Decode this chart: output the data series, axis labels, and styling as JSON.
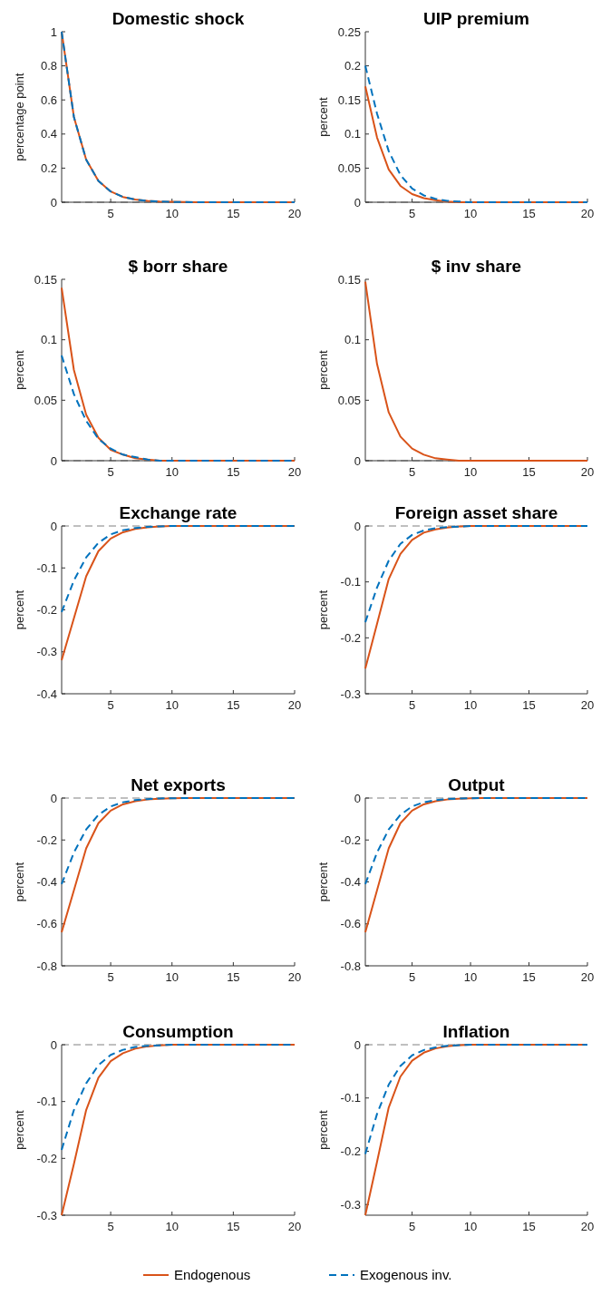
{
  "chart_data": [
    {
      "type": "line",
      "title": "Domestic shock",
      "ylabel": "percentage point",
      "x": [
        1,
        2,
        3,
        4,
        5,
        6,
        7,
        8,
        9,
        10,
        11,
        12,
        13,
        14,
        15,
        16,
        17,
        18,
        19,
        20
      ],
      "xlim": [
        1,
        20
      ],
      "xticks": [
        5,
        10,
        15,
        20
      ],
      "ylim": [
        0,
        1
      ],
      "yticks": [
        0,
        0.2,
        0.4,
        0.6,
        0.8,
        1
      ],
      "ref_lines": [
        {
          "axis": "y",
          "value": 0,
          "color": "#808080",
          "line_style": "dashed"
        }
      ],
      "series": [
        {
          "color": "#d95319",
          "line_style": "solid",
          "values": [
            1,
            0.5,
            0.25,
            0.125,
            0.063,
            0.031,
            0.016,
            0.008,
            0.004,
            0.002,
            0.001,
            0,
            0,
            0,
            0,
            0,
            0,
            0,
            0,
            0
          ]
        },
        {
          "color": "#0072bd",
          "line_style": "dashed",
          "values": [
            1,
            0.5,
            0.25,
            0.125,
            0.063,
            0.031,
            0.016,
            0.008,
            0.004,
            0.002,
            0.001,
            0,
            0,
            0,
            0,
            0,
            0,
            0,
            0,
            0
          ]
        }
      ]
    },
    {
      "type": "line",
      "title": "UIP premium",
      "ylabel": "percent",
      "x": [
        1,
        2,
        3,
        4,
        5,
        6,
        7,
        8,
        9,
        10,
        11,
        12,
        13,
        14,
        15,
        16,
        17,
        18,
        19,
        20
      ],
      "xlim": [
        1,
        20
      ],
      "xticks": [
        5,
        10,
        15,
        20
      ],
      "ylim": [
        0,
        0.25
      ],
      "yticks": [
        0,
        0.05,
        0.1,
        0.15,
        0.2,
        0.25
      ],
      "ref_lines": [
        {
          "axis": "y",
          "value": 0,
          "color": "#808080",
          "line_style": "dashed"
        }
      ],
      "series": [
        {
          "color": "#d95319",
          "line_style": "solid",
          "values": [
            0.17,
            0.095,
            0.048,
            0.024,
            0.012,
            0.006,
            0.003,
            0.001,
            0,
            0,
            0,
            0,
            0,
            0,
            0,
            0,
            0,
            0,
            0,
            0
          ]
        },
        {
          "color": "#0072bd",
          "line_style": "dashed",
          "values": [
            0.2,
            0.13,
            0.075,
            0.04,
            0.02,
            0.01,
            0.005,
            0.002,
            0.001,
            0,
            0,
            0,
            0,
            0,
            0,
            0,
            0,
            0,
            0,
            0
          ]
        }
      ]
    },
    {
      "type": "line",
      "title": "$ borr share",
      "ylabel": "percent",
      "x": [
        1,
        2,
        3,
        4,
        5,
        6,
        7,
        8,
        9,
        10,
        11,
        12,
        13,
        14,
        15,
        16,
        17,
        18,
        19,
        20
      ],
      "xlim": [
        1,
        20
      ],
      "xticks": [
        5,
        10,
        15,
        20
      ],
      "ylim": [
        0,
        0.15
      ],
      "yticks": [
        0,
        0.05,
        0.1,
        0.15
      ],
      "ref_lines": [
        {
          "axis": "y",
          "value": 0,
          "color": "#808080",
          "line_style": "dashed"
        }
      ],
      "series": [
        {
          "color": "#d95319",
          "line_style": "solid",
          "values": [
            0.143,
            0.075,
            0.038,
            0.019,
            0.009,
            0.005,
            0.002,
            0.001,
            0,
            0,
            0,
            0,
            0,
            0,
            0,
            0,
            0,
            0,
            0,
            0
          ]
        },
        {
          "color": "#0072bd",
          "line_style": "dashed",
          "values": [
            0.087,
            0.055,
            0.033,
            0.018,
            0.01,
            0.005,
            0.003,
            0.001,
            0,
            0,
            0,
            0,
            0,
            0,
            0,
            0,
            0,
            0,
            0,
            0
          ]
        }
      ]
    },
    {
      "type": "line",
      "title": "$ inv share",
      "ylabel": "percent",
      "x": [
        1,
        2,
        3,
        4,
        5,
        6,
        7,
        8,
        9,
        10,
        11,
        12,
        13,
        14,
        15,
        16,
        17,
        18,
        19,
        20
      ],
      "xlim": [
        1,
        20
      ],
      "xticks": [
        5,
        10,
        15,
        20
      ],
      "ylim": [
        0,
        0.15
      ],
      "yticks": [
        0,
        0.05,
        0.1,
        0.15
      ],
      "ref_lines": [
        {
          "axis": "y",
          "value": 0,
          "color": "#808080",
          "line_style": "dashed"
        }
      ],
      "series": [
        {
          "color": "#d95319",
          "line_style": "solid",
          "values": [
            0.148,
            0.08,
            0.04,
            0.02,
            0.01,
            0.005,
            0.002,
            0.001,
            0,
            0,
            0,
            0,
            0,
            0,
            0,
            0,
            0,
            0,
            0,
            0
          ]
        }
      ]
    },
    {
      "type": "line",
      "title": "Exchange rate",
      "ylabel": "percent",
      "x": [
        1,
        2,
        3,
        4,
        5,
        6,
        7,
        8,
        9,
        10,
        11,
        12,
        13,
        14,
        15,
        16,
        17,
        18,
        19,
        20
      ],
      "xlim": [
        1,
        20
      ],
      "xticks": [
        5,
        10,
        15,
        20
      ],
      "ylim": [
        -0.4,
        0
      ],
      "yticks": [
        -0.4,
        -0.3,
        -0.2,
        -0.1,
        0
      ],
      "ref_lines": [
        {
          "axis": "y",
          "value": 0,
          "color": "#808080",
          "line_style": "dashed"
        }
      ],
      "series": [
        {
          "color": "#d95319",
          "line_style": "solid",
          "values": [
            -0.32,
            -0.22,
            -0.12,
            -0.06,
            -0.03,
            -0.015,
            -0.007,
            -0.003,
            -0.001,
            0,
            0,
            0,
            0,
            0,
            0,
            0,
            0,
            0,
            0,
            0
          ]
        },
        {
          "color": "#0072bd",
          "line_style": "dashed",
          "values": [
            -0.205,
            -0.13,
            -0.075,
            -0.04,
            -0.02,
            -0.01,
            -0.005,
            -0.002,
            -0.001,
            0,
            0,
            0,
            0,
            0,
            0,
            0,
            0,
            0,
            0,
            0
          ]
        }
      ]
    },
    {
      "type": "line",
      "title": "Foreign asset share",
      "ylabel": "percent",
      "x": [
        1,
        2,
        3,
        4,
        5,
        6,
        7,
        8,
        9,
        10,
        11,
        12,
        13,
        14,
        15,
        16,
        17,
        18,
        19,
        20
      ],
      "xlim": [
        1,
        20
      ],
      "xticks": [
        5,
        10,
        15,
        20
      ],
      "ylim": [
        -0.3,
        0
      ],
      "yticks": [
        -0.3,
        -0.2,
        -0.1,
        0
      ],
      "ref_lines": [
        {
          "axis": "y",
          "value": 0,
          "color": "#808080",
          "line_style": "dashed"
        }
      ],
      "series": [
        {
          "color": "#d95319",
          "line_style": "solid",
          "values": [
            -0.255,
            -0.175,
            -0.095,
            -0.05,
            -0.025,
            -0.012,
            -0.006,
            -0.003,
            -0.001,
            0,
            0,
            0,
            0,
            0,
            0,
            0,
            0,
            0,
            0,
            0
          ]
        },
        {
          "color": "#0072bd",
          "line_style": "dashed",
          "values": [
            -0.172,
            -0.11,
            -0.062,
            -0.032,
            -0.016,
            -0.008,
            -0.004,
            -0.002,
            -0.001,
            0,
            0,
            0,
            0,
            0,
            0,
            0,
            0,
            0,
            0,
            0
          ]
        }
      ]
    },
    {
      "type": "line",
      "title": "Net exports",
      "ylabel": "percent",
      "x": [
        1,
        2,
        3,
        4,
        5,
        6,
        7,
        8,
        9,
        10,
        11,
        12,
        13,
        14,
        15,
        16,
        17,
        18,
        19,
        20
      ],
      "xlim": [
        1,
        20
      ],
      "xticks": [
        5,
        10,
        15,
        20
      ],
      "ylim": [
        -0.8,
        0
      ],
      "yticks": [
        -0.8,
        -0.6,
        -0.4,
        -0.2,
        0
      ],
      "ref_lines": [
        {
          "axis": "y",
          "value": 0,
          "color": "#808080",
          "line_style": "dashed"
        }
      ],
      "series": [
        {
          "color": "#d95319",
          "line_style": "solid",
          "values": [
            -0.64,
            -0.44,
            -0.24,
            -0.12,
            -0.06,
            -0.03,
            -0.015,
            -0.007,
            -0.003,
            -0.001,
            0,
            0,
            0,
            0,
            0,
            0,
            0,
            0,
            0,
            0
          ]
        },
        {
          "color": "#0072bd",
          "line_style": "dashed",
          "values": [
            -0.41,
            -0.26,
            -0.15,
            -0.08,
            -0.04,
            -0.02,
            -0.01,
            -0.005,
            -0.002,
            -0.001,
            0,
            0,
            0,
            0,
            0,
            0,
            0,
            0,
            0,
            0
          ]
        }
      ]
    },
    {
      "type": "line",
      "title": "Output",
      "ylabel": "percent",
      "x": [
        1,
        2,
        3,
        4,
        5,
        6,
        7,
        8,
        9,
        10,
        11,
        12,
        13,
        14,
        15,
        16,
        17,
        18,
        19,
        20
      ],
      "xlim": [
        1,
        20
      ],
      "xticks": [
        5,
        10,
        15,
        20
      ],
      "ylim": [
        -0.8,
        0
      ],
      "yticks": [
        -0.8,
        -0.6,
        -0.4,
        -0.2,
        0
      ],
      "ref_lines": [
        {
          "axis": "y",
          "value": 0,
          "color": "#808080",
          "line_style": "dashed"
        }
      ],
      "series": [
        {
          "color": "#d95319",
          "line_style": "solid",
          "values": [
            -0.64,
            -0.44,
            -0.24,
            -0.12,
            -0.06,
            -0.03,
            -0.015,
            -0.007,
            -0.003,
            -0.001,
            0,
            0,
            0,
            0,
            0,
            0,
            0,
            0,
            0,
            0
          ]
        },
        {
          "color": "#0072bd",
          "line_style": "dashed",
          "values": [
            -0.41,
            -0.26,
            -0.15,
            -0.08,
            -0.04,
            -0.02,
            -0.01,
            -0.005,
            -0.002,
            -0.001,
            0,
            0,
            0,
            0,
            0,
            0,
            0,
            0,
            0,
            0
          ]
        }
      ]
    },
    {
      "type": "line",
      "title": "Consumption",
      "ylabel": "percent",
      "x": [
        1,
        2,
        3,
        4,
        5,
        6,
        7,
        8,
        9,
        10,
        11,
        12,
        13,
        14,
        15,
        16,
        17,
        18,
        19,
        20
      ],
      "xlim": [
        1,
        20
      ],
      "xticks": [
        5,
        10,
        15,
        20
      ],
      "ylim": [
        -0.3,
        0
      ],
      "yticks": [
        -0.3,
        -0.2,
        -0.1,
        0
      ],
      "ref_lines": [
        {
          "axis": "y",
          "value": 0,
          "color": "#808080",
          "line_style": "dashed"
        }
      ],
      "series": [
        {
          "color": "#d95319",
          "line_style": "solid",
          "values": [
            -0.3,
            -0.21,
            -0.115,
            -0.058,
            -0.029,
            -0.015,
            -0.007,
            -0.003,
            -0.001,
            0,
            0,
            0,
            0,
            0,
            0,
            0,
            0,
            0,
            0,
            0
          ]
        },
        {
          "color": "#0072bd",
          "line_style": "dashed",
          "values": [
            -0.185,
            -0.115,
            -0.068,
            -0.036,
            -0.018,
            -0.009,
            -0.004,
            -0.002,
            -0.001,
            0,
            0,
            0,
            0,
            0,
            0,
            0,
            0,
            0,
            0,
            0
          ]
        }
      ]
    },
    {
      "type": "line",
      "title": "Inflation",
      "ylabel": "percent",
      "x": [
        1,
        2,
        3,
        4,
        5,
        6,
        7,
        8,
        9,
        10,
        11,
        12,
        13,
        14,
        15,
        16,
        17,
        18,
        19,
        20
      ],
      "xlim": [
        1,
        20
      ],
      "xticks": [
        5,
        10,
        15,
        20
      ],
      "ylim": [
        -0.32,
        0
      ],
      "yticks": [
        -0.3,
        -0.2,
        -0.1,
        0
      ],
      "legend": "bottom",
      "ref_lines": [
        {
          "axis": "y",
          "value": 0,
          "color": "#808080",
          "line_style": "dashed"
        }
      ],
      "series": [
        {
          "name": "Endogenous",
          "color": "#d95319",
          "line_style": "solid",
          "values": [
            -0.32,
            -0.22,
            -0.118,
            -0.06,
            -0.03,
            -0.015,
            -0.007,
            -0.003,
            -0.001,
            0,
            0,
            0,
            0,
            0,
            0,
            0,
            0,
            0,
            0,
            0
          ]
        },
        {
          "name": "Exogenous inv.",
          "color": "#0072bd",
          "line_style": "dashed",
          "values": [
            -0.205,
            -0.13,
            -0.075,
            -0.04,
            -0.02,
            -0.01,
            -0.005,
            -0.002,
            -0.001,
            0,
            0,
            0,
            0,
            0,
            0,
            0,
            0,
            0,
            0,
            0
          ]
        }
      ]
    }
  ]
}
